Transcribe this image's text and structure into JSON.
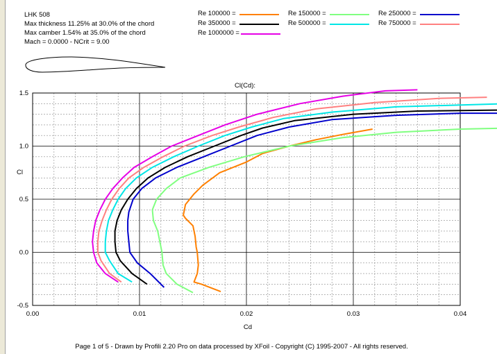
{
  "info": {
    "name": "LHK  508",
    "thickness": "Max thickness 11.25% at 30.0% of the chord",
    "camber": "Max camber 1.54% at 35.0% of the chord",
    "mach": "Mach = 0.0000 - NCrit = 9.00"
  },
  "footer": "Page 1 of 5   -   Drawn by Profili 2.20 Pro on data processed by  XFoil - Copyright (C) 1995-2007 - All rights reserved.",
  "chart_data": {
    "type": "line",
    "title": "Cl(Cd):",
    "xlabel": "Cd",
    "ylabel": "Cl",
    "xlim": [
      0,
      0.04
    ],
    "ylim": [
      -0.5,
      1.5
    ],
    "x_ticks": [
      "0.00",
      "0.01",
      "0.02",
      "0.03",
      "0.04"
    ],
    "y_ticks": [
      "1.5",
      "1.0",
      "0.5",
      "0.0",
      "-0.5"
    ],
    "grid": true,
    "legend_position": "top",
    "series": [
      {
        "name": "Re 100000 =",
        "color": "#ff8000",
        "points": [
          [
            0.0176,
            -0.37
          ],
          [
            0.0158,
            -0.3
          ],
          [
            0.0151,
            -0.28
          ],
          [
            0.0154,
            -0.2
          ],
          [
            0.0155,
            -0.12
          ],
          [
            0.0154,
            0.0
          ],
          [
            0.0153,
            0.05
          ],
          [
            0.0152,
            0.15
          ],
          [
            0.015,
            0.25
          ],
          [
            0.0143,
            0.32
          ],
          [
            0.0141,
            0.35
          ],
          [
            0.0143,
            0.45
          ],
          [
            0.0151,
            0.55
          ],
          [
            0.0159,
            0.63
          ],
          [
            0.0175,
            0.75
          ],
          [
            0.02,
            0.85
          ],
          [
            0.0215,
            0.93
          ],
          [
            0.024,
            1.0
          ],
          [
            0.0265,
            1.06
          ],
          [
            0.029,
            1.11
          ],
          [
            0.0318,
            1.16
          ]
        ]
      },
      {
        "name": "Re 150000 =",
        "color": "#80ff80",
        "points": [
          [
            0.015,
            -0.38
          ],
          [
            0.0135,
            -0.3
          ],
          [
            0.0125,
            -0.2
          ],
          [
            0.0122,
            -0.12
          ],
          [
            0.0121,
            0.0
          ],
          [
            0.0119,
            0.1
          ],
          [
            0.0117,
            0.2
          ],
          [
            0.0113,
            0.3
          ],
          [
            0.0112,
            0.4
          ],
          [
            0.0116,
            0.5
          ],
          [
            0.0125,
            0.6
          ],
          [
            0.0138,
            0.7
          ],
          [
            0.0165,
            0.8
          ],
          [
            0.0198,
            0.9
          ],
          [
            0.024,
            1.0
          ],
          [
            0.029,
            1.08
          ],
          [
            0.034,
            1.13
          ],
          [
            0.04,
            1.16
          ],
          [
            0.0445,
            1.17
          ]
        ]
      },
      {
        "name": "Re 250000 =",
        "color": "#0000cc",
        "points": [
          [
            0.0123,
            -0.33
          ],
          [
            0.011,
            -0.2
          ],
          [
            0.0098,
            -0.1
          ],
          [
            0.0091,
            0.0
          ],
          [
            0.009,
            0.1
          ],
          [
            0.0089,
            0.2
          ],
          [
            0.0089,
            0.3
          ],
          [
            0.009,
            0.38
          ],
          [
            0.0094,
            0.5
          ],
          [
            0.0102,
            0.6
          ],
          [
            0.0115,
            0.7
          ],
          [
            0.0135,
            0.8
          ],
          [
            0.016,
            0.9
          ],
          [
            0.0185,
            1.0
          ],
          [
            0.021,
            1.1
          ],
          [
            0.024,
            1.18
          ],
          [
            0.028,
            1.25
          ],
          [
            0.034,
            1.29
          ],
          [
            0.04,
            1.31
          ],
          [
            0.0445,
            1.31
          ]
        ]
      },
      {
        "name": "Re 350000 =",
        "color": "#000000",
        "points": [
          [
            0.0107,
            -0.3
          ],
          [
            0.0093,
            -0.2
          ],
          [
            0.0082,
            -0.08
          ],
          [
            0.0078,
            0.0
          ],
          [
            0.0077,
            0.1
          ],
          [
            0.0077,
            0.2
          ],
          [
            0.0079,
            0.3
          ],
          [
            0.0083,
            0.4
          ],
          [
            0.0089,
            0.5
          ],
          [
            0.0097,
            0.6
          ],
          [
            0.0108,
            0.7
          ],
          [
            0.0124,
            0.8
          ],
          [
            0.0145,
            0.9
          ],
          [
            0.017,
            1.0
          ],
          [
            0.0195,
            1.1
          ],
          [
            0.0215,
            1.17
          ],
          [
            0.0245,
            1.24
          ],
          [
            0.03,
            1.3
          ],
          [
            0.036,
            1.33
          ],
          [
            0.0445,
            1.34
          ]
        ]
      },
      {
        "name": "Re 500000 =",
        "color": "#00e6e6",
        "points": [
          [
            0.0093,
            -0.28
          ],
          [
            0.008,
            -0.2
          ],
          [
            0.0072,
            -0.08
          ],
          [
            0.0068,
            0.0
          ],
          [
            0.0068,
            0.1
          ],
          [
            0.0069,
            0.2
          ],
          [
            0.0071,
            0.3
          ],
          [
            0.0075,
            0.4
          ],
          [
            0.008,
            0.5
          ],
          [
            0.0087,
            0.6
          ],
          [
            0.0097,
            0.7
          ],
          [
            0.0112,
            0.8
          ],
          [
            0.0132,
            0.9
          ],
          [
            0.0155,
            1.0
          ],
          [
            0.018,
            1.1
          ],
          [
            0.0205,
            1.18
          ],
          [
            0.0235,
            1.26
          ],
          [
            0.028,
            1.32
          ],
          [
            0.034,
            1.37
          ],
          [
            0.0445,
            1.4
          ]
        ]
      },
      {
        "name": "Re 750000 =",
        "color": "#ff8080",
        "points": [
          [
            0.0083,
            -0.28
          ],
          [
            0.0072,
            -0.2
          ],
          [
            0.0064,
            -0.08
          ],
          [
            0.0061,
            0.0
          ],
          [
            0.0061,
            0.1
          ],
          [
            0.0062,
            0.2
          ],
          [
            0.0065,
            0.3
          ],
          [
            0.0069,
            0.4
          ],
          [
            0.0074,
            0.5
          ],
          [
            0.0081,
            0.6
          ],
          [
            0.009,
            0.7
          ],
          [
            0.0104,
            0.8
          ],
          [
            0.0122,
            0.9
          ],
          [
            0.0142,
            1.0
          ],
          [
            0.0168,
            1.1
          ],
          [
            0.0193,
            1.18
          ],
          [
            0.0225,
            1.27
          ],
          [
            0.0265,
            1.35
          ],
          [
            0.032,
            1.41
          ],
          [
            0.038,
            1.45
          ],
          [
            0.0425,
            1.46
          ]
        ]
      },
      {
        "name": "Re 1000000 =",
        "color": "#e600e6",
        "points": [
          [
            0.008,
            -0.28
          ],
          [
            0.0068,
            -0.2
          ],
          [
            0.006,
            -0.1
          ],
          [
            0.0057,
            0.0
          ],
          [
            0.0056,
            0.1
          ],
          [
            0.0057,
            0.2
          ],
          [
            0.0059,
            0.3
          ],
          [
            0.0063,
            0.4
          ],
          [
            0.0068,
            0.5
          ],
          [
            0.0075,
            0.6
          ],
          [
            0.0084,
            0.7
          ],
          [
            0.0095,
            0.8
          ],
          [
            0.0112,
            0.9
          ],
          [
            0.013,
            1.0
          ],
          [
            0.0155,
            1.1
          ],
          [
            0.018,
            1.2
          ],
          [
            0.021,
            1.3
          ],
          [
            0.025,
            1.4
          ],
          [
            0.029,
            1.47
          ],
          [
            0.033,
            1.52
          ],
          [
            0.036,
            1.53
          ]
        ]
      }
    ]
  }
}
